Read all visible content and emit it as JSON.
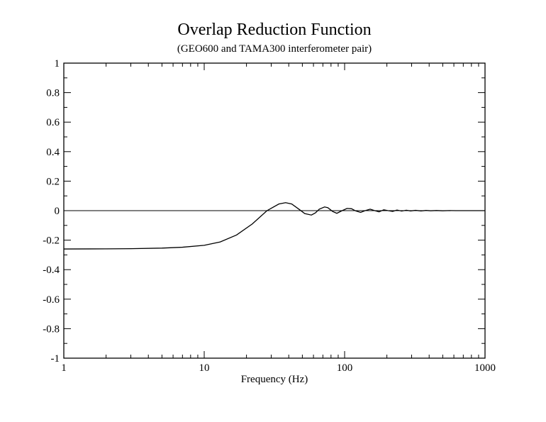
{
  "chart_data": {
    "type": "line",
    "title": "Overlap Reduction Function",
    "subtitle": "(GEO600 and TAMA300 interferometer pair)",
    "xlabel": "Frequency (Hz)",
    "ylabel": "",
    "xscale": "log",
    "xlim": [
      1,
      1000
    ],
    "ylim": [
      -1,
      1
    ],
    "x_ticks": [
      1,
      10,
      100,
      1000
    ],
    "x_tick_labels": [
      "1",
      "10",
      "100",
      "1000"
    ],
    "y_ticks": [
      -1,
      -0.8,
      -0.6,
      -0.4,
      -0.2,
      0,
      0.2,
      0.4,
      0.6,
      0.8,
      1
    ],
    "y_tick_labels": [
      "-1",
      "-0.8",
      "-0.6",
      "-0.4",
      "-0.2",
      "0",
      "0.2",
      "0.4",
      "0.6",
      "0.8",
      "1"
    ],
    "reference_line_y": 0,
    "grid": false,
    "legend": "none",
    "series": [
      {
        "x": [
          1,
          2,
          3,
          5,
          7,
          10,
          13,
          17,
          22,
          28,
          34,
          38,
          42,
          48,
          52,
          58,
          62,
          66,
          72,
          76,
          82,
          88,
          96,
          104,
          112,
          120,
          130,
          140,
          152,
          164,
          176,
          190,
          204,
          220,
          236,
          255,
          275,
          295,
          320,
          350,
          380,
          410,
          450,
          500,
          560,
          620,
          700,
          800,
          900,
          1000
        ],
        "y": [
          -0.26,
          -0.259,
          -0.258,
          -0.254,
          -0.248,
          -0.235,
          -0.212,
          -0.165,
          -0.09,
          0.0,
          0.045,
          0.054,
          0.045,
          0.005,
          -0.02,
          -0.03,
          -0.015,
          0.01,
          0.025,
          0.02,
          -0.005,
          -0.018,
          0.0,
          0.015,
          0.013,
          -0.002,
          -0.012,
          0.0,
          0.01,
          0.0,
          -0.008,
          0.006,
          0.0,
          -0.005,
          0.004,
          -0.003,
          0.003,
          -0.002,
          0.002,
          -0.002,
          0.0015,
          -0.001,
          0.001,
          -0.001,
          0.0005,
          0.0,
          0.0,
          0.0,
          0.0,
          0.0
        ]
      }
    ]
  }
}
